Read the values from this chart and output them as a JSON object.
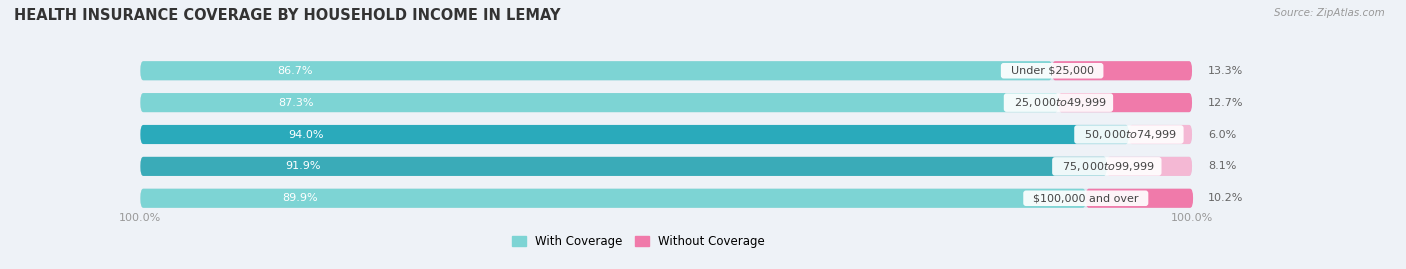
{
  "title": "HEALTH INSURANCE COVERAGE BY HOUSEHOLD INCOME IN LEMAY",
  "source": "Source: ZipAtlas.com",
  "categories": [
    "Under $25,000",
    "$25,000 to $49,999",
    "$50,000 to $74,999",
    "$75,000 to $99,999",
    "$100,000 and over"
  ],
  "with_coverage": [
    86.7,
    87.3,
    94.0,
    91.9,
    89.9
  ],
  "without_coverage": [
    13.3,
    12.7,
    6.0,
    8.1,
    10.2
  ],
  "color_with_light": "#7dd8d8",
  "color_with_dark": "#2ba8b8",
  "color_without_strong": "#f06aaa",
  "color_without_light": "#f4a0c8",
  "bg_color": "#eef2f7",
  "bar_bg": "#dde4ee",
  "bar_height": 0.6,
  "title_fontsize": 10.5,
  "label_fontsize": 8.0,
  "tick_fontsize": 8.0,
  "legend_fontsize": 8.5,
  "axis_label_left": "100.0%",
  "axis_label_right": "100.0%",
  "without_colors": [
    "#f06aaa",
    "#f06aaa",
    "#f4b8d4",
    "#f4b8d4",
    "#f06aaa"
  ],
  "with_colors": [
    "#7dd8d8",
    "#7dd8d8",
    "#2ba8b8",
    "#2ba8b8",
    "#7dd8d8"
  ]
}
